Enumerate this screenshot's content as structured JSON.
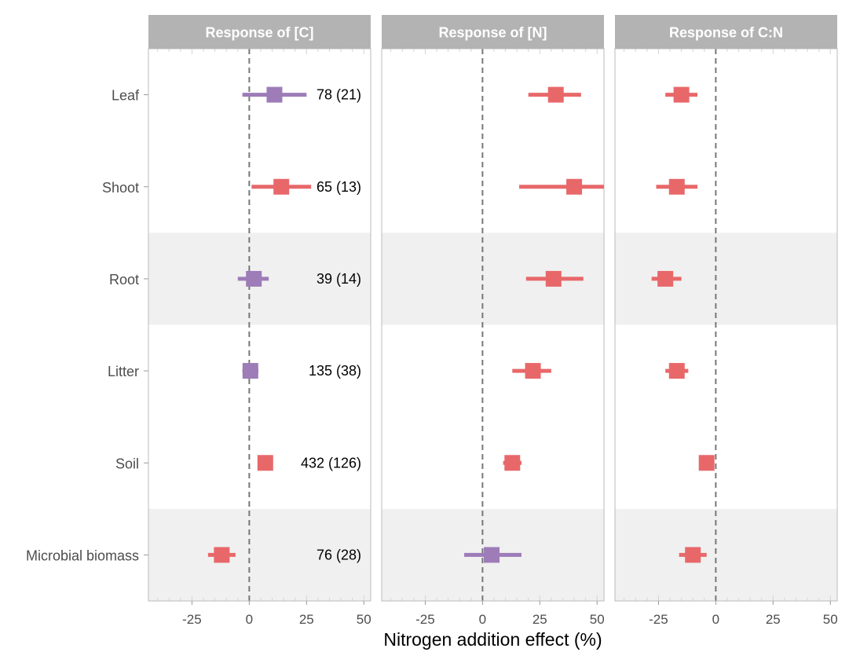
{
  "chart_data": {
    "type": "forest",
    "xlabel": "Nitrogen addition effect (%)",
    "xlim": [
      -44,
      53
    ],
    "xticks": [
      -25,
      0,
      25,
      50
    ],
    "xtick_labels": [
      "-25",
      "0",
      "25",
      "50"
    ],
    "reference_line": 0,
    "categories": [
      "Leaf",
      "Shoot",
      "Root",
      "Litter",
      "Soil",
      "Microbial biomass"
    ],
    "shaded_rows": [
      "Root",
      "Microbial biomass"
    ],
    "colors": {
      "significant": "#e8686a",
      "non_significant": "#9d7cb8",
      "strip": "#b3b3b3",
      "shade": "#f0f0f0",
      "ref_line": "#777777",
      "frame": "#bbbbbb"
    },
    "panels": [
      {
        "title": "Response of [C]",
        "series": [
          {
            "category": "Leaf",
            "estimate": 11,
            "lower": -3,
            "upper": 25,
            "significant": false,
            "label": "78 (21)"
          },
          {
            "category": "Shoot",
            "estimate": 14,
            "lower": 1,
            "upper": 27,
            "significant": true,
            "label": "65 (13)"
          },
          {
            "category": "Root",
            "estimate": 2,
            "lower": -5,
            "upper": 8.5,
            "significant": false,
            "label": "39 (14)"
          },
          {
            "category": "Litter",
            "estimate": 0.5,
            "lower": -3,
            "upper": 4,
            "significant": false,
            "label": "135 (38)"
          },
          {
            "category": "Soil",
            "estimate": 7,
            "lower": 5,
            "upper": 9,
            "significant": true,
            "label": "432 (126)"
          },
          {
            "category": "Microbial biomass",
            "estimate": -12,
            "lower": -18,
            "upper": -6,
            "significant": true,
            "label": "76 (28)"
          }
        ]
      },
      {
        "title": "Response of [N]",
        "series": [
          {
            "category": "Leaf",
            "estimate": 32,
            "lower": 20,
            "upper": 43,
            "significant": true
          },
          {
            "category": "Shoot",
            "estimate": 40,
            "lower": 16,
            "upper": 53,
            "significant": true
          },
          {
            "category": "Root",
            "estimate": 31,
            "lower": 19,
            "upper": 44,
            "significant": true
          },
          {
            "category": "Litter",
            "estimate": 22,
            "lower": 13,
            "upper": 30,
            "significant": true
          },
          {
            "category": "Soil",
            "estimate": 13,
            "lower": 9,
            "upper": 17,
            "significant": true
          },
          {
            "category": "Microbial biomass",
            "estimate": 4,
            "lower": -8,
            "upper": 17,
            "significant": false
          }
        ]
      },
      {
        "title": "Response of C:N",
        "series": [
          {
            "category": "Leaf",
            "estimate": -15,
            "lower": -22,
            "upper": -8,
            "significant": true
          },
          {
            "category": "Shoot",
            "estimate": -17,
            "lower": -26,
            "upper": -8,
            "significant": true
          },
          {
            "category": "Root",
            "estimate": -22,
            "lower": -28,
            "upper": -15,
            "significant": true
          },
          {
            "category": "Litter",
            "estimate": -17,
            "lower": -22,
            "upper": -12,
            "significant": true
          },
          {
            "category": "Soil",
            "estimate": -4,
            "lower": -7,
            "upper": -1,
            "significant": true
          },
          {
            "category": "Microbial biomass",
            "estimate": -10,
            "lower": -16,
            "upper": -4,
            "significant": true
          }
        ]
      }
    ]
  }
}
